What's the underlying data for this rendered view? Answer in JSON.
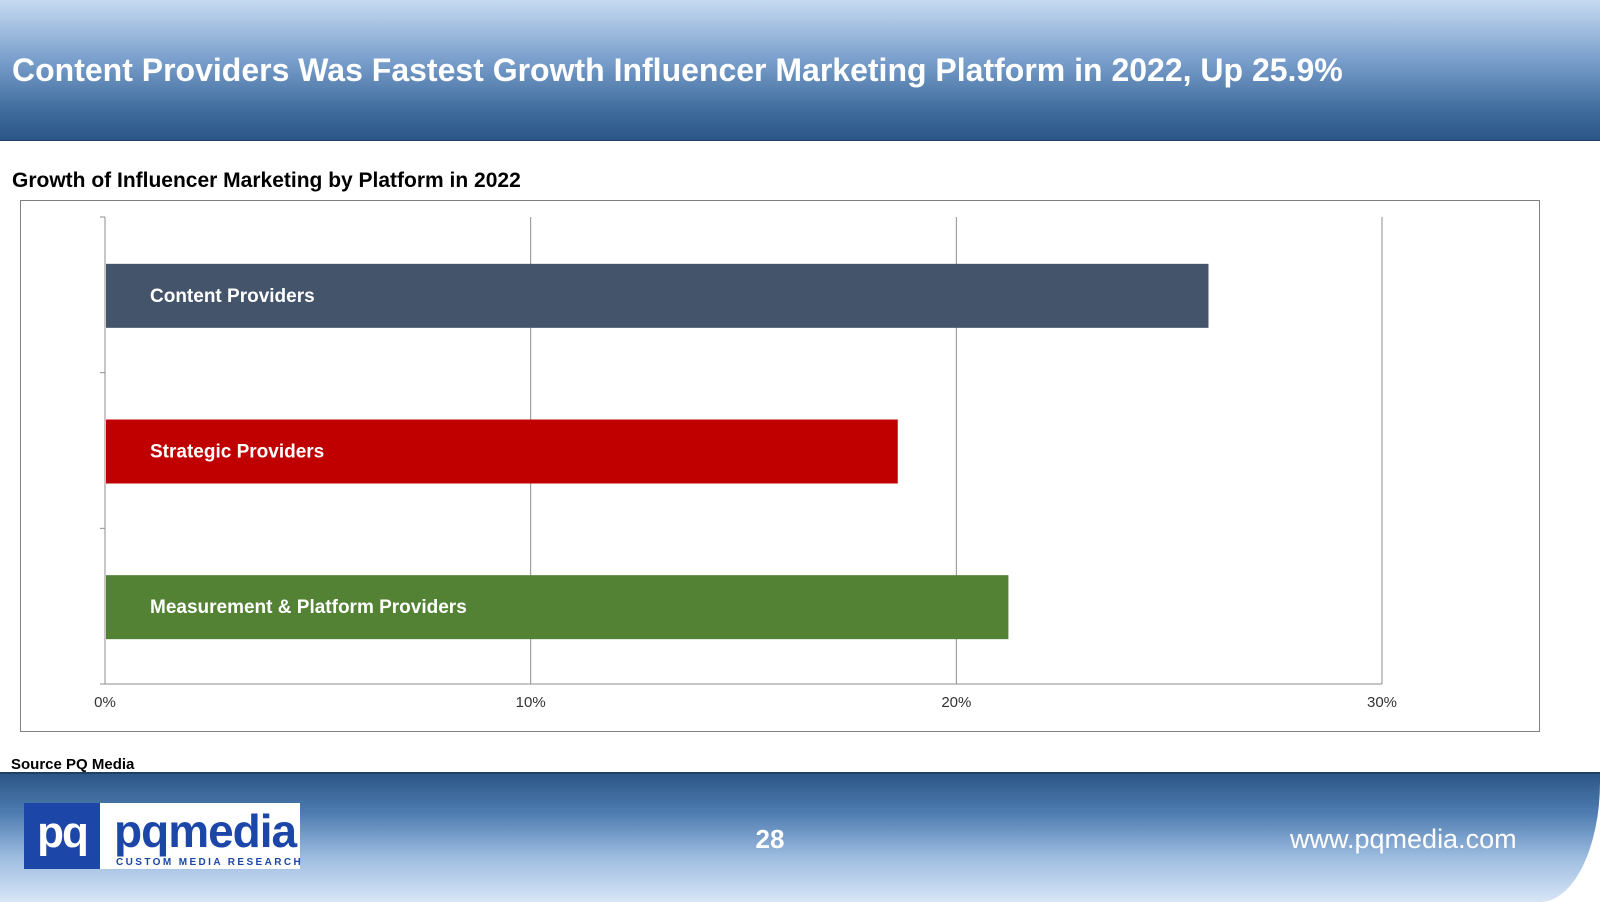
{
  "header": {
    "title": "Content Providers Was Fastest Growth Influencer Marketing Platform in 2022, Up 25.9%"
  },
  "chart_data": {
    "type": "bar",
    "orientation": "horizontal",
    "title": "Growth of Influencer Marketing by Platform in 2022",
    "categories": [
      "Content Providers",
      "Strategic Providers",
      "Measurement & Platform Providers"
    ],
    "values": [
      25.9,
      18.6,
      21.2
    ],
    "value_unit": "%",
    "xlim": [
      0,
      30
    ],
    "x_ticks": [
      0,
      10,
      20,
      30
    ],
    "x_tick_labels": [
      "0%",
      "10%",
      "20%",
      "30%"
    ],
    "grid": true,
    "bar_colors": [
      "#44546a",
      "#c00000",
      "#548235"
    ]
  },
  "source": "Source PQ Media",
  "footer": {
    "logo_mark": "pq",
    "logo_word": "pqmedia",
    "logo_tagline": "CUSTOM MEDIA RESEARCH",
    "page_number": "28",
    "website": "www.pqmedia.com"
  }
}
